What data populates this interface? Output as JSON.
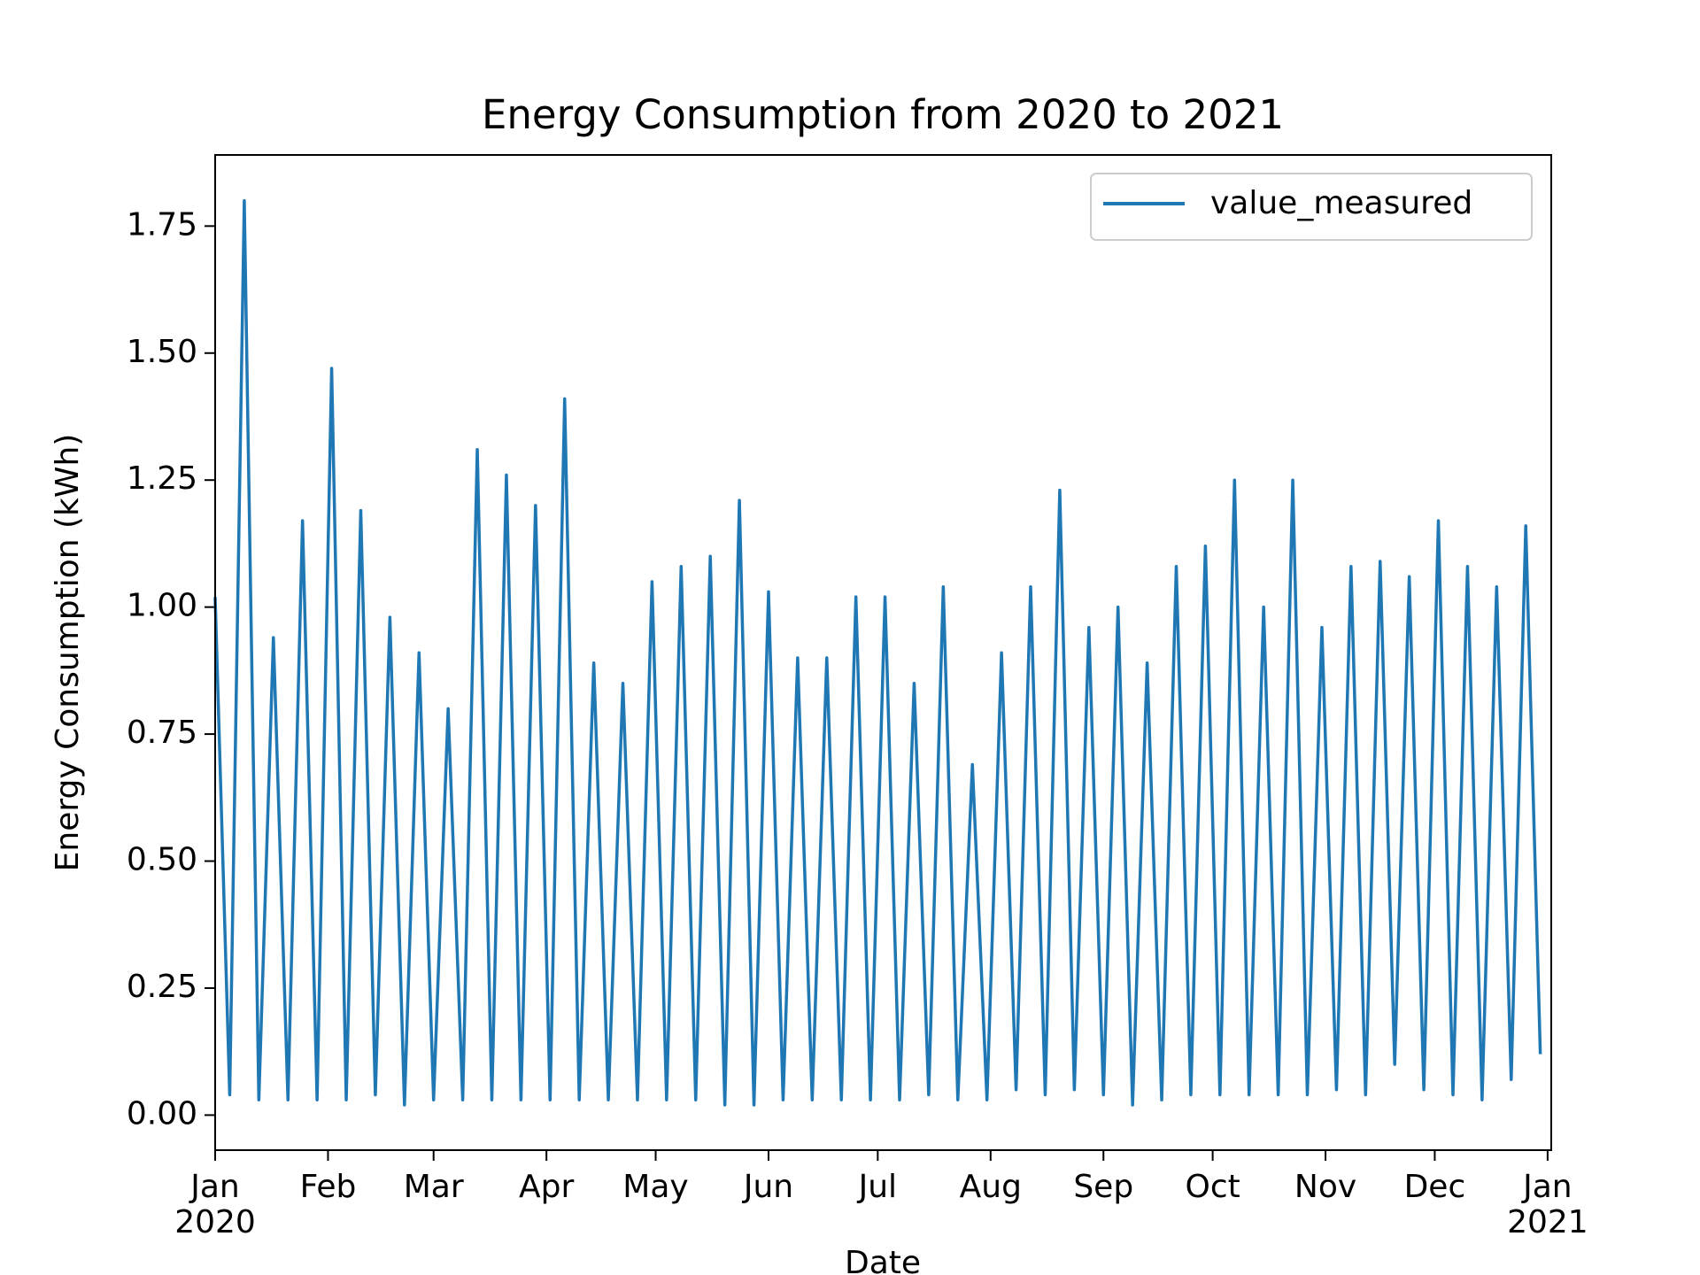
{
  "chart_data": {
    "type": "line",
    "title": "Energy Consumption from 2020 to 2021",
    "x_label": "Date",
    "y_label": "Energy Consumption (kWh)",
    "x": [
      0,
      4,
      8,
      12,
      16,
      20,
      24,
      28,
      32,
      36,
      40,
      44,
      48,
      52,
      56,
      60,
      64,
      68,
      72,
      76,
      80,
      84,
      88,
      92,
      96,
      100,
      104,
      108,
      112,
      116,
      120,
      124,
      128,
      132,
      136,
      140,
      144,
      148,
      152,
      156,
      160,
      164,
      168,
      172,
      176,
      180,
      184,
      188,
      192,
      196,
      200,
      204,
      208,
      212,
      216,
      220,
      224,
      228,
      232,
      236,
      240,
      244,
      248,
      252,
      256,
      260,
      264,
      268,
      272,
      276,
      280,
      284,
      288,
      292,
      296,
      300,
      304,
      308,
      312,
      316,
      320,
      324,
      328,
      332,
      336,
      340,
      344,
      348,
      352,
      356,
      360,
      364
    ],
    "series": [
      {
        "name": "value_measured",
        "color": "#1f77b4",
        "values": [
          1.02,
          0.04,
          1.8,
          0.03,
          0.94,
          0.03,
          1.17,
          0.03,
          1.47,
          0.03,
          1.19,
          0.04,
          0.98,
          0.02,
          0.91,
          0.03,
          0.8,
          0.03,
          1.31,
          0.03,
          1.26,
          0.03,
          1.2,
          0.03,
          1.41,
          0.03,
          0.89,
          0.03,
          0.85,
          0.03,
          1.05,
          0.03,
          1.08,
          0.03,
          1.1,
          0.02,
          1.21,
          0.02,
          1.03,
          0.03,
          0.9,
          0.03,
          0.9,
          0.03,
          1.02,
          0.03,
          1.02,
          0.03,
          0.85,
          0.04,
          1.04,
          0.03,
          0.69,
          0.03,
          0.91,
          0.05,
          1.04,
          0.04,
          1.23,
          0.05,
          0.96,
          0.04,
          1.0,
          0.02,
          0.89,
          0.03,
          1.08,
          0.04,
          1.12,
          0.04,
          1.25,
          0.04,
          1.0,
          0.04,
          1.25,
          0.04,
          0.96,
          0.05,
          1.08,
          0.04,
          1.09,
          0.1,
          1.06,
          0.05,
          1.17,
          0.04,
          1.08,
          0.03,
          1.04,
          0.07,
          1.16,
          0.12
        ]
      }
    ],
    "xlim": [
      0,
      367
    ],
    "xticks": [
      {
        "value": 0,
        "label": "Jan\n2020"
      },
      {
        "value": 31,
        "label": "Feb"
      },
      {
        "value": 60,
        "label": "Mar"
      },
      {
        "value": 91,
        "label": "Apr"
      },
      {
        "value": 121,
        "label": "May"
      },
      {
        "value": 152,
        "label": "Jun"
      },
      {
        "value": 182,
        "label": "Jul"
      },
      {
        "value": 213,
        "label": "Aug"
      },
      {
        "value": 244,
        "label": "Sep"
      },
      {
        "value": 274,
        "label": "Oct"
      },
      {
        "value": 305,
        "label": "Nov"
      },
      {
        "value": 335,
        "label": "Dec"
      },
      {
        "value": 366,
        "label": "Jan\n2021"
      }
    ],
    "ylim": [
      -0.069,
      1.89
    ],
    "yticks": [
      {
        "value": 0,
        "label": "0.00"
      },
      0.25,
      {
        "value": 0.5,
        "label": "0.50"
      },
      0.75,
      {
        "value": 1,
        "label": "1.00"
      },
      1.25,
      {
        "value": 1.5,
        "label": "1.50"
      },
      1.75
    ],
    "grid": false,
    "legend": "upper right"
  }
}
